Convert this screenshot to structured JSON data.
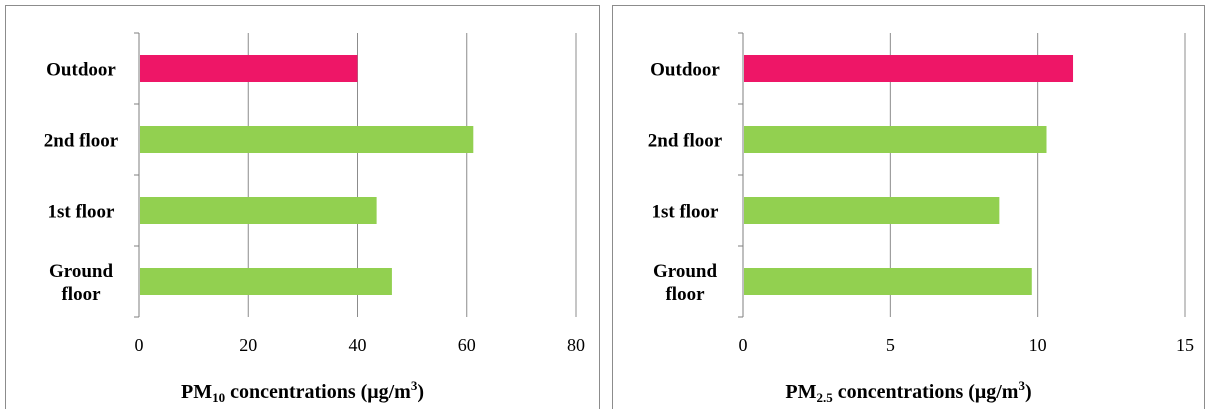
{
  "chart_data": [
    {
      "type": "bar",
      "orientation": "horizontal",
      "categories": [
        "Outdoor",
        "2nd floor",
        "1st floor",
        "Ground floor"
      ],
      "category_lines": [
        [
          "Outdoor"
        ],
        [
          "2nd floor"
        ],
        [
          "1st floor"
        ],
        [
          "Ground",
          "floor"
        ]
      ],
      "values": [
        40,
        61.2,
        43.5,
        46.3
      ],
      "colors": [
        "#ee1667",
        "#92d050",
        "#92d050",
        "#92d050"
      ],
      "xlim": [
        0,
        80
      ],
      "xticks": [
        0,
        20,
        40,
        60,
        80
      ],
      "xlabel": {
        "base": "PM",
        "sub": "10",
        "rest": " concentrations (μg/m",
        "sup": "3",
        "end": ")"
      },
      "grid": "vertical"
    },
    {
      "type": "bar",
      "orientation": "horizontal",
      "categories": [
        "Outdoor",
        "2nd floor",
        "1st floor",
        "Ground floor"
      ],
      "category_lines": [
        [
          "Outdoor"
        ],
        [
          "2nd floor"
        ],
        [
          "1st floor"
        ],
        [
          "Ground",
          "floor"
        ]
      ],
      "values": [
        11.2,
        10.3,
        8.7,
        9.8
      ],
      "colors": [
        "#ee1667",
        "#92d050",
        "#92d050",
        "#92d050"
      ],
      "xlim": [
        0,
        15
      ],
      "xticks": [
        0,
        5,
        10,
        15
      ],
      "xlabel": {
        "base": "PM",
        "sub": "2.5",
        "rest": " concentrations (μg/m",
        "sup": "3",
        "end": ")"
      },
      "grid": "vertical"
    }
  ]
}
